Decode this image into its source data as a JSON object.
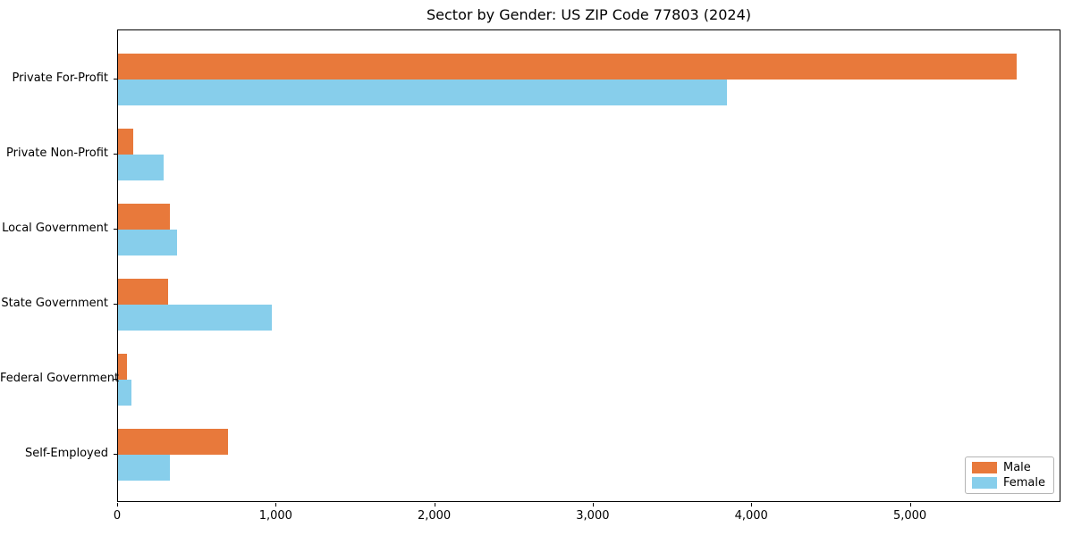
{
  "chart_data": {
    "type": "bar",
    "orientation": "horizontal",
    "title": "Sector by Gender: US ZIP Code 77803 (2024)",
    "categories": [
      "Private For-Profit",
      "Private Non-Profit",
      "Local Government",
      "State Government",
      "Federal Government",
      "Self-Employed"
    ],
    "series": [
      {
        "name": "Male",
        "color": "#e8793b",
        "values": [
          5670,
          95,
          325,
          315,
          55,
          695
        ]
      },
      {
        "name": "Female",
        "color": "#87ceeb",
        "values": [
          3840,
          285,
          370,
          970,
          85,
          325
        ]
      }
    ],
    "xlim": [
      0,
      5950
    ],
    "xticks": [
      0,
      1000,
      2000,
      3000,
      4000,
      5000
    ],
    "xtick_labels": [
      "0",
      "1,000",
      "2,000",
      "3,000",
      "4,000",
      "5,000"
    ],
    "xlabel": "",
    "ylabel": "",
    "grid": false,
    "legend_position": "lower right",
    "axis_color": "#000000",
    "background_color": "#ffffff"
  }
}
